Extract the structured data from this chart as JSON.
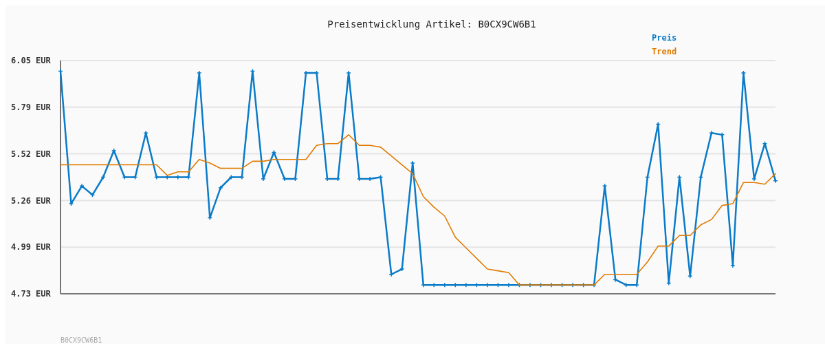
{
  "chart_data": {
    "type": "line",
    "title": "Preisentwicklung Artikel: B0CX9CW6B1",
    "categories": [
      null,
      null,
      null,
      null,
      null,
      null,
      null,
      null,
      null,
      null,
      null,
      null,
      null,
      null,
      null,
      null,
      null,
      null,
      null,
      null,
      null,
      null,
      null,
      null,
      null,
      null,
      null,
      null,
      null,
      null,
      null,
      null,
      null,
      null,
      null,
      null,
      null,
      null,
      null,
      null,
      null,
      null,
      null,
      null,
      null,
      null,
      null,
      null,
      null,
      null,
      null,
      null,
      null,
      null,
      null,
      null,
      null,
      null,
      null,
      null,
      null,
      null,
      null,
      null,
      null,
      null,
      null,
      null
    ],
    "series": [
      {
        "name": "Preis",
        "color": "#0a7bc8",
        "marker": "cross",
        "values": [
          5.99,
          5.24,
          5.34,
          5.29,
          5.39,
          5.54,
          5.39,
          5.39,
          5.64,
          5.39,
          5.39,
          5.39,
          5.39,
          5.98,
          5.16,
          5.33,
          5.39,
          5.39,
          5.99,
          5.38,
          5.53,
          5.38,
          5.38,
          5.98,
          5.98,
          5.38,
          5.38,
          5.98,
          5.38,
          5.38,
          5.39,
          4.84,
          4.87,
          5.47,
          4.78,
          4.78,
          4.78,
          4.78,
          4.78,
          4.78,
          4.78,
          4.78,
          4.78,
          4.78,
          4.78,
          4.78,
          4.78,
          4.78,
          4.78,
          4.78,
          4.78,
          5.34,
          4.81,
          4.78,
          4.78,
          5.39,
          5.69,
          4.79,
          5.39,
          4.83,
          5.39,
          5.64,
          5.63,
          4.89,
          5.98,
          5.38,
          5.58,
          5.37
        ]
      },
      {
        "name": "Trend",
        "color": "#e07b00",
        "marker": "none",
        "values": [
          5.46,
          5.46,
          5.46,
          5.46,
          5.46,
          5.46,
          5.46,
          5.46,
          5.46,
          5.46,
          5.4,
          5.42,
          5.42,
          5.49,
          5.47,
          5.44,
          5.44,
          5.44,
          5.48,
          5.48,
          5.49,
          5.49,
          5.49,
          5.49,
          5.57,
          5.58,
          5.58,
          5.63,
          5.57,
          5.57,
          5.56,
          5.51,
          5.46,
          5.41,
          5.28,
          5.22,
          5.17,
          5.05,
          4.99,
          4.93,
          4.87,
          4.86,
          4.85,
          4.78,
          4.78,
          4.78,
          4.78,
          4.78,
          4.78,
          4.78,
          4.78,
          4.84,
          4.84,
          4.84,
          4.84,
          4.91,
          5.0,
          5.0,
          5.06,
          5.06,
          5.12,
          5.15,
          5.23,
          5.24,
          5.36,
          5.36,
          5.35,
          5.41
        ]
      }
    ],
    "ylim": [
      4.73,
      6.05
    ],
    "yticks": [
      {
        "value": 4.73,
        "label": "4.73 EUR"
      },
      {
        "value": 4.994,
        "label": "4.99 EUR"
      },
      {
        "value": 5.258,
        "label": "5.26 EUR"
      },
      {
        "value": 5.522,
        "label": "5.52 EUR"
      },
      {
        "value": 5.786,
        "label": "5.79 EUR"
      },
      {
        "value": 6.05,
        "label": "6.05 EUR"
      }
    ],
    "grid": "y",
    "legend": "top right",
    "tick_labels": "y",
    "annotations": [
      "B0CX9CW6B1"
    ]
  }
}
